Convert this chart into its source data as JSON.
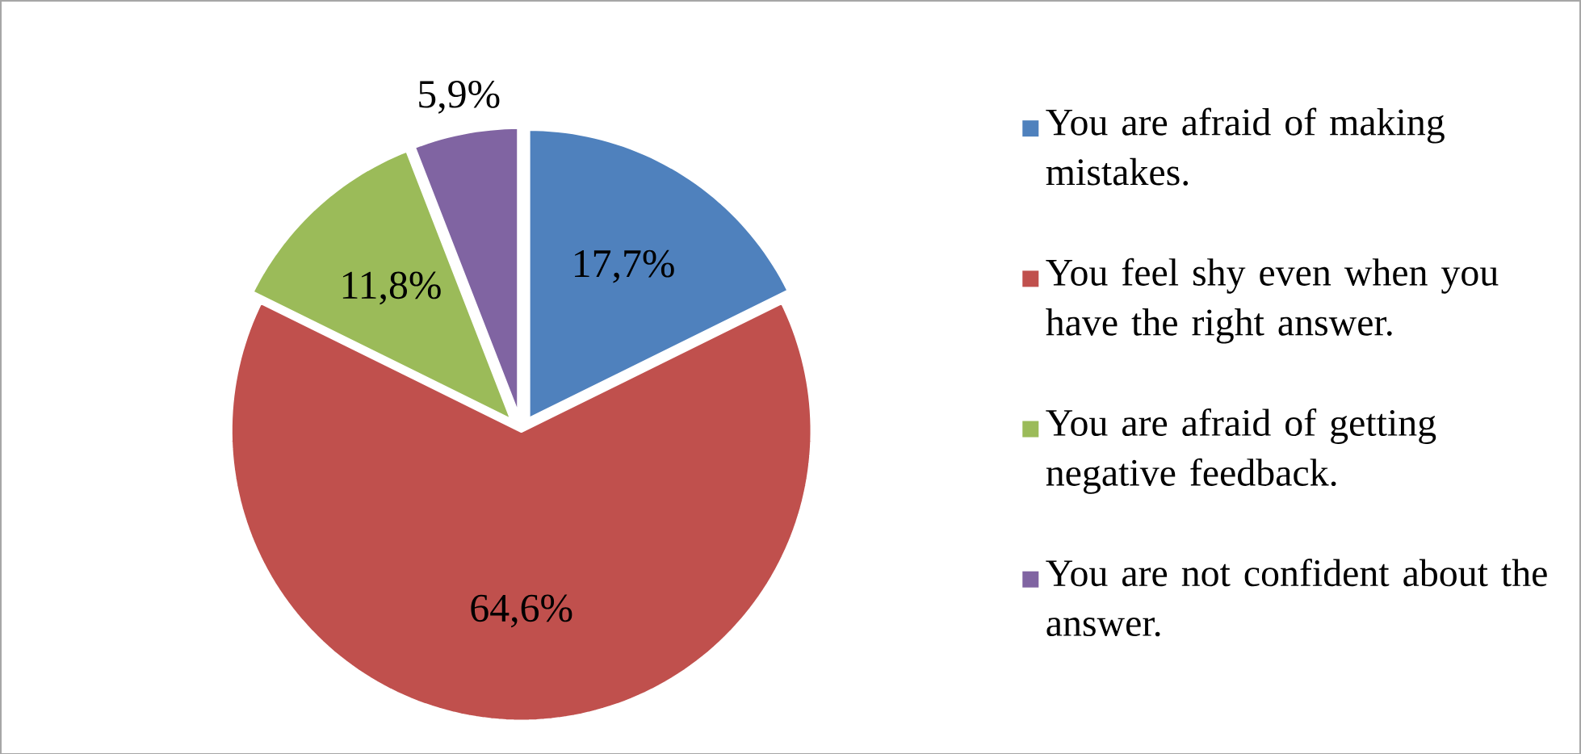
{
  "chart_data": {
    "type": "pie",
    "categories": [
      "You are afraid of making mistakes.",
      "You feel shy even when you have the right answer.",
      "You are afraid of getting negative feedback.",
      "You are not confident about the answer."
    ],
    "values": [
      17.7,
      64.6,
      11.8,
      5.9
    ],
    "value_labels": [
      "17,7%",
      "64,6%",
      "11,8%",
      "5,9%"
    ],
    "colors": [
      "#4f81bd",
      "#c0504d",
      "#9bbb59",
      "#8064a2"
    ],
    "legend": "right"
  }
}
